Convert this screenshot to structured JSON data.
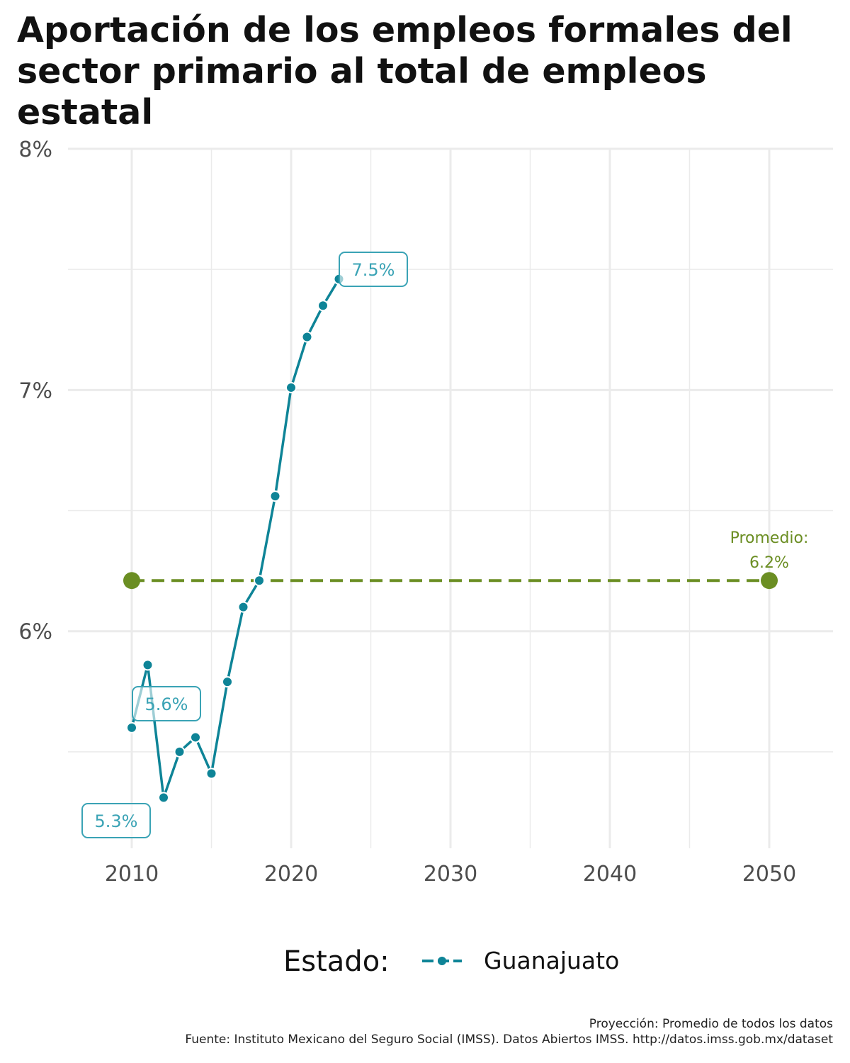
{
  "title": "Aportación de los empleos formales del sector primario al total de empleos estatal",
  "chart_data": {
    "type": "line",
    "x": [
      2010,
      2011,
      2012,
      2013,
      2014,
      2015,
      2016,
      2017,
      2018,
      2019,
      2020,
      2021,
      2022,
      2023
    ],
    "series": [
      {
        "name": "Guanajuato",
        "color": "#0e8497",
        "values": [
          5.6,
          5.86,
          5.31,
          5.5,
          5.56,
          5.41,
          5.79,
          6.1,
          6.21,
          6.56,
          7.01,
          7.22,
          7.35,
          7.46
        ]
      }
    ],
    "average": {
      "value": 6.21,
      "x_range": [
        2010,
        2050
      ],
      "color": "#6b8e23",
      "label_line1": "Promedio:",
      "label_line2": "6.2%"
    },
    "annotations": [
      {
        "x": 2010,
        "y": 5.6,
        "text": "5.6%"
      },
      {
        "x": 2012,
        "y": 5.31,
        "text": "5.3%"
      },
      {
        "x": 2023,
        "y": 7.46,
        "text": "7.5%"
      }
    ],
    "xlim": [
      2006,
      2054
    ],
    "ylim": [
      5.1,
      8.0
    ],
    "x_ticks": [
      2010,
      2020,
      2030,
      2040,
      2050
    ],
    "x_tick_labels": [
      "2010",
      "2020",
      "2030",
      "2040",
      "2050"
    ],
    "y_ticks": [
      6,
      7,
      8
    ],
    "y_tick_labels": [
      "6%",
      "7%",
      "8%"
    ],
    "xlabel": "",
    "ylabel": "",
    "grid": true,
    "legend": {
      "title": "Estado:",
      "position": "bottom"
    }
  },
  "caption": {
    "line1": "Proyección: Promedio de todos los datos",
    "line2": "Fuente: Instituto Mexicano del Seguro Social (IMSS). Datos Abiertos IMSS. http://datos.imss.gob.mx/dataset"
  }
}
